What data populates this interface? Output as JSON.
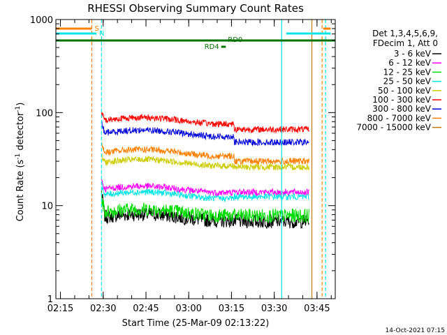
{
  "chart_data": {
    "type": "line",
    "title": "RHESSI Observing Summary Count Rates",
    "xlabel": "Start Time (25-Mar-09 02:13:22)",
    "ylabel_main": "Count Rate (s",
    "ylabel_sup1": "-1",
    "ylabel_mid": " detector",
    "ylabel_sup2": "-1",
    "ylabel_end": ")",
    "y_scale": "log",
    "ylim": [
      1,
      1000
    ],
    "xlim_minutes": [
      0,
      98
    ],
    "x_ticks": [
      {
        "t": 1.6,
        "label": "02:15"
      },
      {
        "t": 16.6,
        "label": "02:30"
      },
      {
        "t": 31.6,
        "label": "02:45"
      },
      {
        "t": 46.6,
        "label": "03:00"
      },
      {
        "t": 61.6,
        "label": "03:15"
      },
      {
        "t": 76.6,
        "label": "03:30"
      },
      {
        "t": 91.6,
        "label": "03:45"
      }
    ],
    "y_ticks": [
      {
        "v": 1,
        "label": "1"
      },
      {
        "v": 10,
        "label": "10"
      },
      {
        "v": 100,
        "label": "100"
      },
      {
        "v": 1000,
        "label": "1000"
      }
    ],
    "legend": {
      "placement": "right",
      "header": [
        "Det 1,3,4,5,6,9,",
        "FDecim 1, Att 0"
      ]
    },
    "data_start_t": 16.0,
    "data_end_t": 88.8,
    "step_t": 62.6,
    "series": [
      {
        "name": "3 - 6 keV",
        "color": "#000000",
        "level_before": 7.5,
        "level_after": 6.8,
        "peak": 14
      },
      {
        "name": "6 - 12 keV",
        "color": "#ff00ff",
        "level_before": 15,
        "level_after": 14,
        "peak": 19
      },
      {
        "name": "12 - 25 keV",
        "color": "#00dd00",
        "level_before": 8.5,
        "level_after": 7.8,
        "peak": 12
      },
      {
        "name": "25 - 50 keV",
        "color": "#00e5e5",
        "level_before": 13,
        "level_after": 12.5,
        "peak": 17
      },
      {
        "name": "50 - 100 keV",
        "color": "#cccc00",
        "level_before": 29,
        "level_after": 26,
        "peak": 34
      },
      {
        "name": "100 - 300 keV",
        "color": "#ff0000",
        "level_before": 82,
        "level_after": 66,
        "peak": 100
      },
      {
        "name": "300 - 800 keV",
        "color": "#0000dd",
        "level_before": 60,
        "level_after": 48,
        "peak": 78
      },
      {
        "name": "800 - 7000 keV",
        "color": "#ff8000",
        "level_before": 37,
        "level_after": 30,
        "peak": 46
      },
      {
        "name": "7000 - 15000 keV",
        "color": "#c07800",
        "level_before": 0,
        "level_after": 0,
        "peak": 0
      }
    ],
    "flags": {
      "saa_label": "S",
      "night_label": "N",
      "rd0_label": "RD0",
      "rd4_label": "RD4",
      "saa_color": "#ff8000",
      "night_color": "#00e5e5",
      "rd_color": "#007000",
      "saa_end_t": 12.6,
      "saa_start2_t": 93.8,
      "night_end_t": 14.2,
      "night_start2_t": 80.8,
      "night_end2_t": 96.4,
      "rd0_start_t": 0.0,
      "rd0_end_t": 98.0,
      "rd4_start_t": 58.0,
      "rd4_end_t": 59.6
    },
    "vlines": [
      {
        "t": 12.6,
        "color": "#ff8000",
        "dash": true
      },
      {
        "t": 16.0,
        "color": "#00e5e5",
        "dash": true
      },
      {
        "t": 79.2,
        "color": "#00e5e5",
        "dash": false
      },
      {
        "t": 89.8,
        "color": "#c07800",
        "dash": false
      },
      {
        "t": 93.4,
        "color": "#ff8000",
        "dash": true
      },
      {
        "t": 94.6,
        "color": "#00e5e5",
        "dash": true
      }
    ]
  },
  "footer": {
    "timestamp": "14-Oct-2021 07:15"
  }
}
